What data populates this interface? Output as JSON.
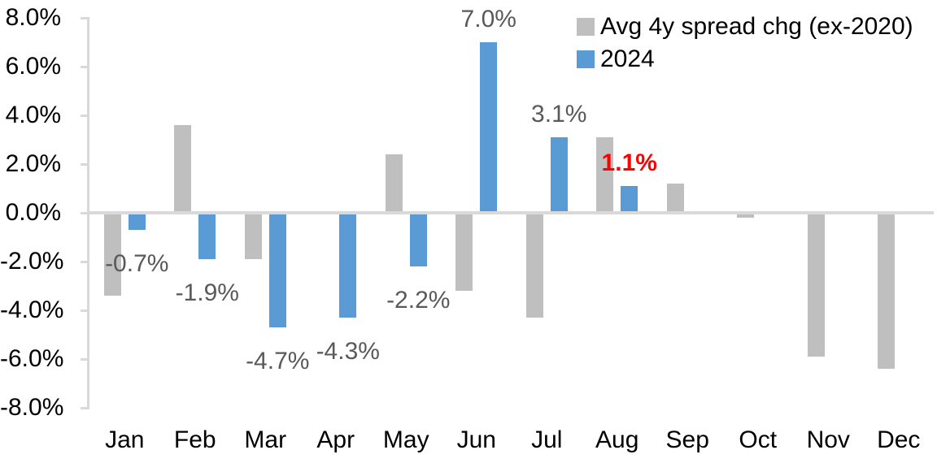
{
  "chart_data": {
    "type": "bar",
    "title": "",
    "categories": [
      "Jan",
      "Feb",
      "Mar",
      "Apr",
      "May",
      "Jun",
      "Jul",
      "Aug",
      "Sep",
      "Oct",
      "Nov",
      "Dec"
    ],
    "series": [
      {
        "name": "Avg 4y spread chg (ex-2020)",
        "color": "#bfbfbf",
        "values": [
          -3.4,
          3.6,
          -1.9,
          0.0,
          2.4,
          -3.2,
          -4.3,
          3.1,
          1.2,
          -0.2,
          -5.9,
          -6.4
        ]
      },
      {
        "name": "2024",
        "color": "#5b9bd5",
        "values": [
          -0.7,
          -1.9,
          -4.7,
          -4.3,
          -2.2,
          7.0,
          3.1,
          1.1,
          null,
          null,
          null,
          null
        ]
      }
    ],
    "data_labels": [
      {
        "category": "Jan",
        "text": "-0.7%",
        "color": "#595959",
        "bold": false
      },
      {
        "category": "Feb",
        "text": "-1.9%",
        "color": "#595959",
        "bold": false
      },
      {
        "category": "Mar",
        "text": "-4.7%",
        "color": "#595959",
        "bold": false
      },
      {
        "category": "Apr",
        "text": "-4.3%",
        "color": "#595959",
        "bold": false
      },
      {
        "category": "May",
        "text": "-2.2%",
        "color": "#595959",
        "bold": false
      },
      {
        "category": "Jun",
        "text": "7.0%",
        "color": "#595959",
        "bold": false
      },
      {
        "category": "Jul",
        "text": "3.1%",
        "color": "#595959",
        "bold": false
      },
      {
        "category": "Aug",
        "text": "1.1%",
        "color": "#ff0000",
        "bold": true
      }
    ],
    "y_axis": {
      "tick_labels": [
        "8.0%",
        "6.0%",
        "4.0%",
        "2.0%",
        "0.0%",
        "-2.0%",
        "-4.0%",
        "-6.0%",
        "-8.0%"
      ],
      "min": -8,
      "max": 8,
      "step": 2,
      "axis_color": "#d9d9d9",
      "label_color": "#000000"
    },
    "x_axis": {
      "label_color": "#000000"
    },
    "legend": {
      "position": "top-right",
      "entries": [
        {
          "label": "Avg 4y spread chg (ex-2020)",
          "color": "#bfbfbf"
        },
        {
          "label": "2024",
          "color": "#5b9bd5"
        }
      ]
    },
    "grid": false,
    "background": "#ffffff"
  }
}
